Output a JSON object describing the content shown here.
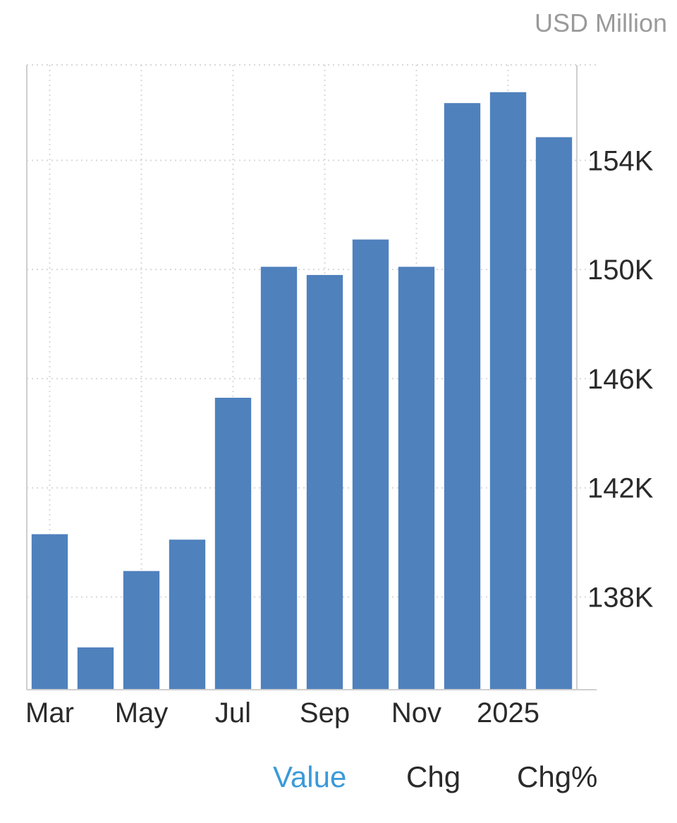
{
  "header": {
    "unit": "USD Million"
  },
  "tabs": [
    {
      "label": "Value",
      "active": true
    },
    {
      "label": "Chg",
      "active": false
    },
    {
      "label": "Chg%",
      "active": false
    }
  ],
  "colors": {
    "bar": "#4f81bd",
    "active_tab": "#3a9ad9",
    "grid": "#d8d8d8"
  },
  "chart_data": {
    "type": "bar",
    "categories": [
      "Mar",
      "Apr",
      "May",
      "Jun",
      "Jul",
      "Aug",
      "Sep",
      "Oct",
      "Nov",
      "Dec",
      "2025",
      "Feb"
    ],
    "values": [
      140300,
      136150,
      138950,
      140100,
      145300,
      150100,
      149800,
      151100,
      150100,
      156100,
      156500,
      154850
    ],
    "x_tick_labels": [
      "Mar",
      "",
      "May",
      "",
      "Jul",
      "",
      "Sep",
      "",
      "Nov",
      "",
      "2025",
      ""
    ],
    "y_ticks": [
      138000,
      142000,
      146000,
      150000,
      154000
    ],
    "y_tick_labels": [
      "138K",
      "142K",
      "146K",
      "150K",
      "154K"
    ],
    "ylim": [
      134600,
      157500
    ],
    "grid": true,
    "y_axis_side": "right"
  }
}
